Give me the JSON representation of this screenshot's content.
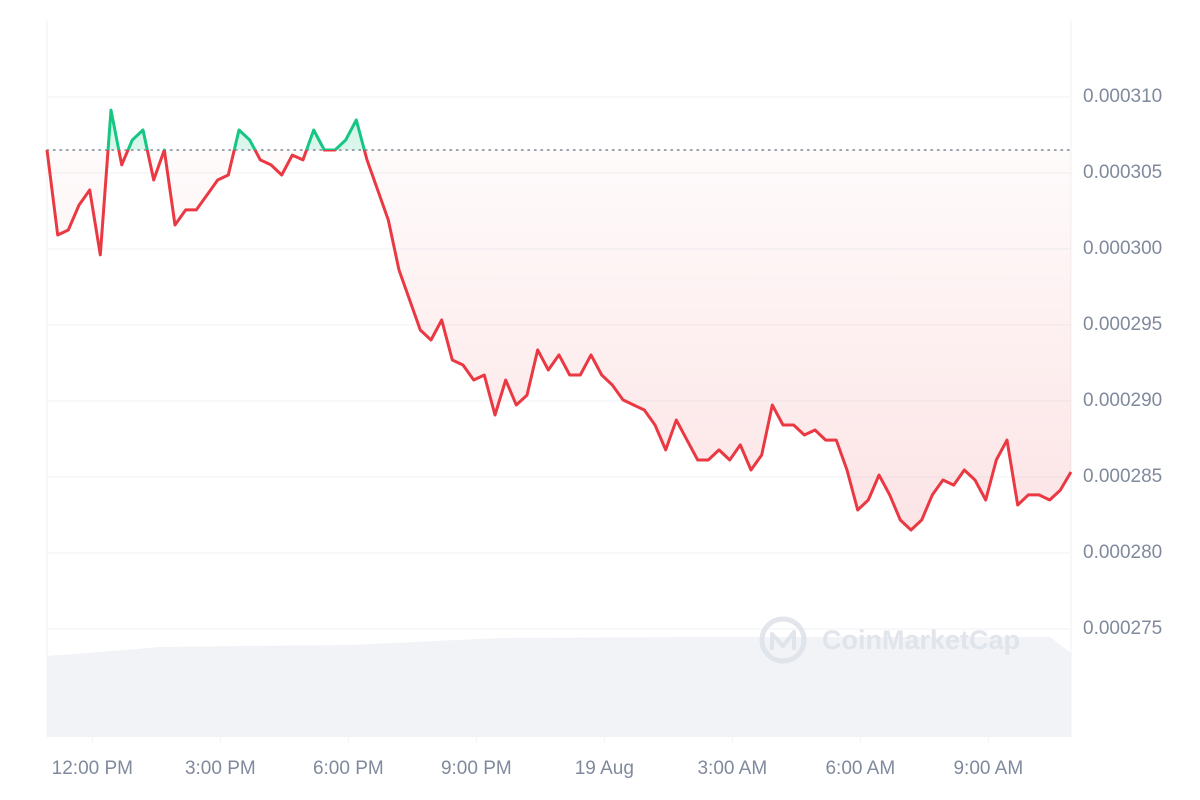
{
  "chart_data": {
    "type": "line",
    "watermark": "CoinMarketCap",
    "color": "#ea3943",
    "up_color": "#16c784",
    "grid": true,
    "ylim": [
      0.000268,
      0.000315
    ],
    "yticks": [
      {
        "value": 0.000275,
        "label": "0.000275"
      },
      {
        "value": 0.00028,
        "label": "0.000280"
      },
      {
        "value": 0.000285,
        "label": "0.000285"
      },
      {
        "value": 0.00029,
        "label": "0.000290"
      },
      {
        "value": 0.000295,
        "label": "0.000295"
      },
      {
        "value": 0.0003,
        "label": "0.000300"
      },
      {
        "value": 0.000305,
        "label": "0.000305"
      },
      {
        "value": 0.00031,
        "label": "0.000310"
      }
    ],
    "xlim": [
      0,
      96
    ],
    "xticks": [
      {
        "value": 4.25,
        "label": "12:00 PM"
      },
      {
        "value": 16.25,
        "label": "3:00 PM"
      },
      {
        "value": 28.25,
        "label": "6:00 PM"
      },
      {
        "value": 40.25,
        "label": "9:00 PM"
      },
      {
        "value": 52.25,
        "label": "19 Aug"
      },
      {
        "value": 64.25,
        "label": "3:00 AM"
      },
      {
        "value": 76.25,
        "label": "6:00 AM"
      },
      {
        "value": 88.25,
        "label": "9:00 AM"
      }
    ],
    "values": [
      0.00030651,
      0.00030092,
      0.00030125,
      0.00030289,
      0.00030388,
      0.00029961,
      0.00030914,
      0.00030553,
      0.00030717,
      0.00030783,
      0.00030454,
      0.00030651,
      0.00030158,
      0.00030257,
      0.00030257,
      0.00030355,
      0.00030454,
      0.00030487,
      0.00030783,
      0.00030717,
      0.00030586,
      0.00030553,
      0.00030487,
      0.00030618,
      0.00030586,
      0.00030783,
      0.00030651,
      0.00030651,
      0.00030717,
      0.00030849,
      0.00030586,
      0.00030388,
      0.00030191,
      0.00029862,
      0.00029664,
      0.00029467,
      0.00029401,
      0.00029533,
      0.0002927,
      0.00029237,
      0.00029138,
      0.00029171,
      0.00028908,
      0.00029138,
      0.00028974,
      0.00029039,
      0.00029336,
      0.00029204,
      0.00029303,
      0.00029171,
      0.00029171,
      0.00029303,
      0.00029171,
      0.00029105,
      0.00029007,
      0.00028974,
      0.00028941,
      0.00028842,
      0.00028678,
      0.00028875,
      0.00028743,
      0.00028612,
      0.00028612,
      0.00028678,
      0.00028612,
      0.00028711,
      0.00028546,
      0.00028645,
      0.00028974,
      0.00028842,
      0.00028842,
      0.00028776,
      0.00028809,
      0.00028743,
      0.00028743,
      0.00028546,
      0.00028283,
      0.00028349,
      0.00028513,
      0.00028382,
      0.00028217,
      0.00028151,
      0.00028217,
      0.00028382,
      0.0002848,
      0.00028447,
      0.00028546,
      0.0002848,
      0.00028349,
      0.00028612,
      0.00028743,
      0.00028316,
      0.00028382,
      0.00028382,
      0.00028349,
      0.00028414,
      0.00028533
    ]
  }
}
